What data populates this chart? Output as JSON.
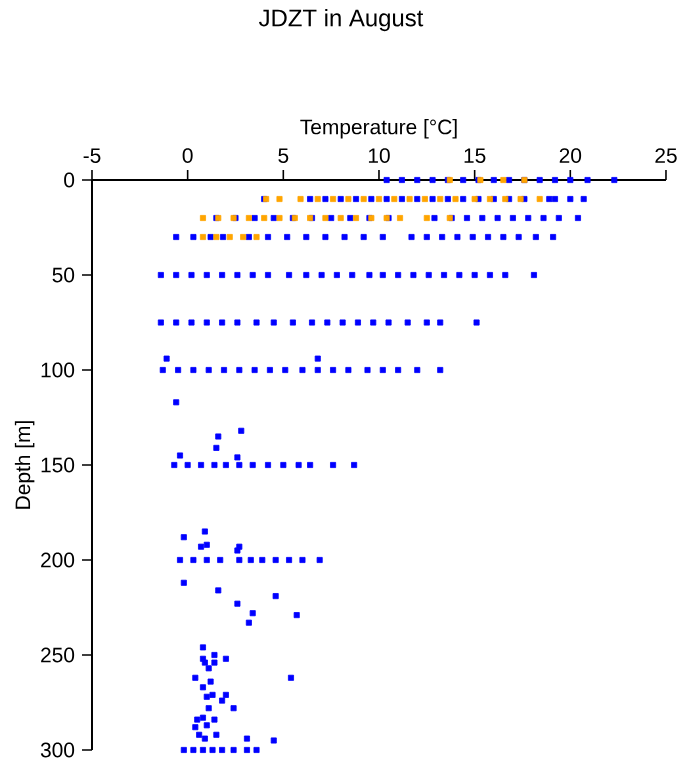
{
  "chart_data": {
    "type": "scatter",
    "title": "JDZT in August",
    "xlabel": "Temperature [°C]",
    "ylabel": "Depth [m]",
    "xlim": [
      -5,
      25
    ],
    "xticks": [
      -5,
      0,
      5,
      10,
      15,
      20,
      25
    ],
    "ylim": [
      300,
      0
    ],
    "yticks": [
      0,
      50,
      100,
      150,
      200,
      250,
      300
    ],
    "grid": false,
    "marker": "square",
    "series": [
      {
        "color": "#0000ff",
        "x": [
          10.4,
          11.2,
          12,
          12.8,
          13.6,
          14.4,
          15.2,
          16,
          16.8,
          17.6,
          18.4,
          19.2,
          20,
          20.9,
          22.3,
          4.0,
          6.4,
          7.2,
          8,
          8.8,
          9.6,
          10.4,
          11.2,
          12,
          12.8,
          13.6,
          14.4,
          15.2,
          16,
          16.8,
          17.6,
          18.9,
          19.2,
          20,
          20.7,
          1.5,
          2.5,
          3.5,
          4.5,
          5.5,
          6.5,
          7.5,
          8.5,
          9.5,
          10.5,
          12.9,
          13.8,
          14.6,
          15.4,
          16.2,
          17,
          17.8,
          18.6,
          19.4,
          20.4,
          -0.6,
          0.3,
          1.2,
          1.85,
          3.2,
          4.2,
          5.2,
          6.2,
          7.2,
          8.2,
          9.2,
          10.2,
          11.7,
          12.5,
          13.3,
          14.1,
          14.9,
          15.7,
          16.5,
          17.3,
          18.2,
          19.1,
          -1.4,
          -0.6,
          0.2,
          1,
          1.8,
          2.6,
          3.4,
          4.2,
          5.3,
          6.2,
          7,
          7.8,
          8.6,
          9.5,
          10.2,
          11,
          11.8,
          12.6,
          13.4,
          14.2,
          15,
          15.8,
          16.6,
          18.1,
          -1.4,
          -0.6,
          0.2,
          1,
          1.8,
          2.6,
          3.6,
          4.5,
          5.5,
          6.5,
          7.3,
          8.1,
          8.9,
          9.7,
          10.5,
          11.5,
          12.5,
          13.2,
          15.1,
          -1.3,
          -0.5,
          0.3,
          1.1,
          1.9,
          2.7,
          3.5,
          4.3,
          5.1,
          6,
          6.8,
          7.6,
          8.4,
          9.4,
          10.2,
          11,
          12,
          13.2,
          -1.1,
          6.8,
          -0.6,
          1.6,
          1.5,
          2.8,
          2.6,
          -0.4,
          -0.7,
          0,
          0.7,
          1.4,
          2,
          2.7,
          3.4,
          4.2,
          5,
          5.8,
          6.4,
          7.6,
          8.7,
          -0.2,
          0.9,
          0.7,
          1.0,
          2.7,
          2.6,
          -0.4,
          0.3,
          1,
          1.7,
          2.7,
          3.3,
          3.9,
          4.6,
          5.3,
          6,
          6.9,
          -0.2,
          1.6,
          4.6,
          2.6,
          3.4,
          5.7,
          3.2,
          0.8,
          0.8,
          1.4,
          2.0,
          0.9,
          1.4,
          1.1,
          0.4,
          5.4,
          1.2,
          0.8,
          1.0,
          1.3,
          2.0,
          1.8,
          2.4,
          1.1,
          0.8,
          0.5,
          1.4,
          1.0,
          0.4,
          0.6,
          1.5,
          0.9,
          3.1,
          4.5,
          -0.2,
          0.3,
          0.8,
          1.3,
          1.8,
          2.4,
          3.1,
          3.6
        ],
        "values": [
          0,
          0,
          0,
          0,
          0,
          0,
          0,
          0,
          0,
          0,
          0,
          0,
          0,
          0,
          0,
          10,
          10,
          10,
          10,
          10,
          10,
          10,
          10,
          10,
          10,
          10,
          10,
          10,
          10,
          10,
          10,
          10,
          10,
          10,
          10,
          20,
          20,
          20,
          20,
          20,
          20,
          20,
          20,
          20,
          20,
          20,
          20,
          20,
          20,
          20,
          20,
          20,
          20,
          20,
          20,
          30,
          30,
          30,
          30,
          30,
          30,
          30,
          30,
          30,
          30,
          30,
          30,
          30,
          30,
          30,
          30,
          30,
          30,
          30,
          30,
          30,
          30,
          50,
          50,
          50,
          50,
          50,
          50,
          50,
          50,
          50,
          50,
          50,
          50,
          50,
          50,
          50,
          50,
          50,
          50,
          50,
          50,
          50,
          50,
          50,
          50,
          75,
          75,
          75,
          75,
          75,
          75,
          75,
          75,
          75,
          75,
          75,
          75,
          75,
          75,
          75,
          75,
          75,
          75,
          75,
          100,
          100,
          100,
          100,
          100,
          100,
          100,
          100,
          100,
          100,
          100,
          100,
          100,
          100,
          100,
          100,
          100,
          100,
          94,
          94,
          117,
          135,
          141,
          132,
          146,
          145,
          150,
          150,
          150,
          150,
          150,
          150,
          150,
          150,
          150,
          150,
          150,
          150,
          150,
          188,
          185,
          193,
          192,
          193,
          195,
          200,
          200,
          200,
          200,
          200,
          200,
          200,
          200,
          200,
          200,
          200,
          212,
          216,
          219,
          223,
          228,
          229,
          233,
          246,
          252,
          250,
          252,
          254,
          254,
          257,
          262,
          262,
          264,
          267,
          272,
          271,
          271,
          274,
          278,
          278,
          283,
          284,
          284,
          287,
          288,
          292,
          292,
          294,
          294,
          295,
          300,
          300,
          300,
          300,
          300,
          300,
          300,
          300
        ]
      },
      {
        "color": "#ffa500",
        "x": [
          13.7,
          15.3,
          16.5,
          17.6,
          4.1,
          4.8,
          5.9,
          6.8,
          7.6,
          8.4,
          9.2,
          10,
          10.8,
          11.6,
          12.4,
          13.2,
          14,
          15,
          15.8,
          16.6,
          17.4,
          18.4,
          0.8,
          1.6,
          2.4,
          3.2,
          4,
          4.8,
          5.6,
          6.4,
          7.2,
          8,
          8.8,
          9.6,
          10.4,
          11.1,
          12.5,
          13.7,
          0.8,
          1.5,
          2.2,
          2.9,
          3.6
        ],
        "values": [
          0,
          0,
          0,
          0,
          10,
          10,
          10,
          10,
          10,
          10,
          10,
          10,
          10,
          10,
          10,
          10,
          10,
          10,
          10,
          10,
          10,
          10,
          20,
          20,
          20,
          20,
          20,
          20,
          20,
          20,
          20,
          20,
          20,
          20,
          20,
          20,
          20,
          20,
          30,
          30,
          30,
          30,
          30
        ]
      }
    ]
  }
}
